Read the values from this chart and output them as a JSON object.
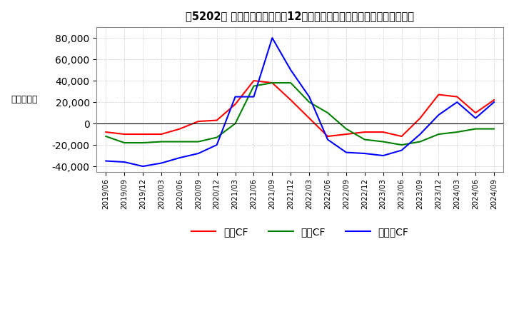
{
  "title": "［5202］ キャッシュフローの12か月移動合計の対前年同期増減額の推移",
  "ylabel": "（百万円）",
  "ylim": [
    -45000,
    90000
  ],
  "yticks": [
    -40000,
    -20000,
    0,
    20000,
    40000,
    60000,
    80000
  ],
  "colors": {
    "eigyo": "#ff0000",
    "toshi": "#008000",
    "free": "#0000ff"
  },
  "legend": [
    "営業CF",
    "投資CF",
    "フリーCF"
  ],
  "dates": [
    "2019/06",
    "2019/09",
    "2019/12",
    "2020/03",
    "2020/06",
    "2020/09",
    "2020/12",
    "2021/03",
    "2021/06",
    "2021/09",
    "2021/12",
    "2022/03",
    "2022/06",
    "2022/09",
    "2022/12",
    "2023/03",
    "2023/06",
    "2023/09",
    "2023/12",
    "2024/03",
    "2024/06",
    "2024/09"
  ],
  "eigyo_cf": [
    -8000,
    -10000,
    -10000,
    -10000,
    -5000,
    2000,
    3000,
    18000,
    40000,
    38000,
    22000,
    5000,
    -12000,
    -10000,
    -8000,
    -8000,
    -12000,
    5000,
    27000,
    25000,
    10000,
    22000
  ],
  "toshi_cf": [
    -12000,
    -18000,
    -18000,
    -17000,
    -17000,
    -17000,
    -13000,
    0,
    35000,
    38000,
    38000,
    20000,
    10000,
    -5000,
    -15000,
    -17000,
    -20000,
    -17000,
    -10000,
    -8000,
    -5000,
    -5000
  ],
  "free_cf": [
    -35000,
    -36000,
    -40000,
    -37000,
    -32000,
    -28000,
    -20000,
    25000,
    25000,
    80000,
    50000,
    25000,
    -15000,
    -27000,
    -28000,
    -30000,
    -25000,
    -10000,
    8000,
    20000,
    5000,
    20000
  ],
  "background_color": "#ffffff",
  "grid_color": "#aaaaaa",
  "grid_style": ":"
}
